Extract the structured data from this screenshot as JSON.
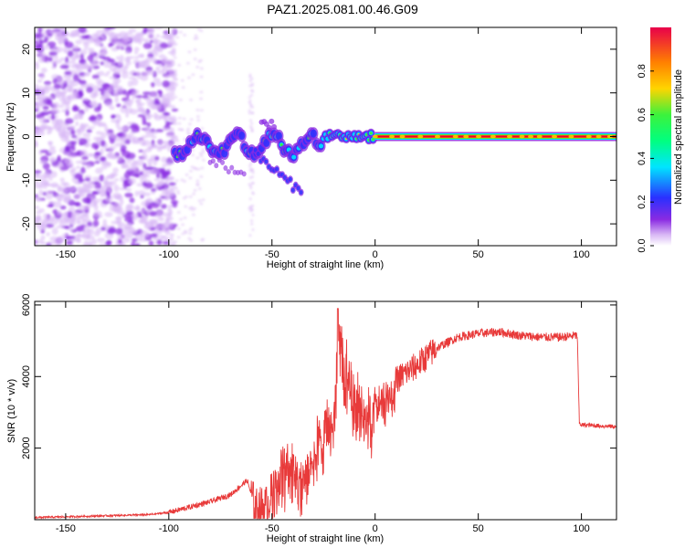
{
  "title": "PAZ1.2025.081.00.46.G09",
  "colors": {
    "line": "#e83a3a",
    "axis": "#000000",
    "purple_light": "#d9b8f5",
    "purple_dark": "#8a2be2",
    "blue": "#2a30ff",
    "cyan": "#00e5ff",
    "green": "#3cf23c",
    "yellow": "#ffd400",
    "orange": "#ff8000",
    "red": "#e8002a"
  },
  "chart_data": [
    {
      "type": "heatmap",
      "xlabel": "Height of straight line (km)",
      "ylabel": "Frequency (Hz)",
      "xlim": [
        -165,
        117
      ],
      "ylim": [
        -25,
        25
      ],
      "xticks": [
        -150,
        -100,
        -50,
        0,
        50,
        100
      ],
      "yticks": [
        -20,
        -10,
        0,
        10,
        20
      ],
      "colorbar": {
        "label": "Normalized spectral amplitude",
        "range": [
          0,
          1
        ],
        "ticks": [
          0.0,
          0.2,
          0.4,
          0.6,
          0.8
        ]
      },
      "regions": [
        {
          "x_range": [
            -165,
            -97
          ],
          "description": "scattered noise",
          "amplitude": 0.05
        },
        {
          "x_range": [
            -97,
            -25
          ],
          "frequency_hz": -2,
          "amplitude": 0.35
        },
        {
          "x_range": [
            -25,
            0
          ],
          "frequency_hz": 0,
          "amplitude": 0.5
        },
        {
          "x_range": [
            0,
            117
          ],
          "frequency_hz": 0,
          "amplitude": 0.95
        }
      ]
    },
    {
      "type": "line",
      "xlabel": "Height of straight line (km)",
      "ylabel": "SNR (10 * v/v)",
      "xlim": [
        -165,
        117
      ],
      "ylim": [
        0,
        6100
      ],
      "xticks": [
        -150,
        -100,
        -50,
        0,
        50,
        100
      ],
      "yticks": [
        2000,
        4000,
        6000
      ],
      "series": [
        {
          "name": "SNR",
          "x": [
            -165,
            -150,
            -130,
            -110,
            -100,
            -90,
            -80,
            -70,
            -62,
            -58,
            -52,
            -45,
            -40,
            -35,
            -28,
            -20,
            -18,
            -10,
            0,
            10,
            20,
            30,
            40,
            50,
            60,
            70,
            80,
            90,
            98,
            99,
            100,
            110,
            117
          ],
          "y": [
            60,
            80,
            110,
            140,
            200,
            350,
            500,
            700,
            1100,
            300,
            400,
            1800,
            2000,
            1600,
            2600,
            3200,
            5900,
            3800,
            3500,
            3900,
            4300,
            4800,
            5100,
            5200,
            5250,
            5150,
            5100,
            5100,
            5150,
            2700,
            2650,
            2620,
            2600
          ]
        }
      ]
    }
  ]
}
